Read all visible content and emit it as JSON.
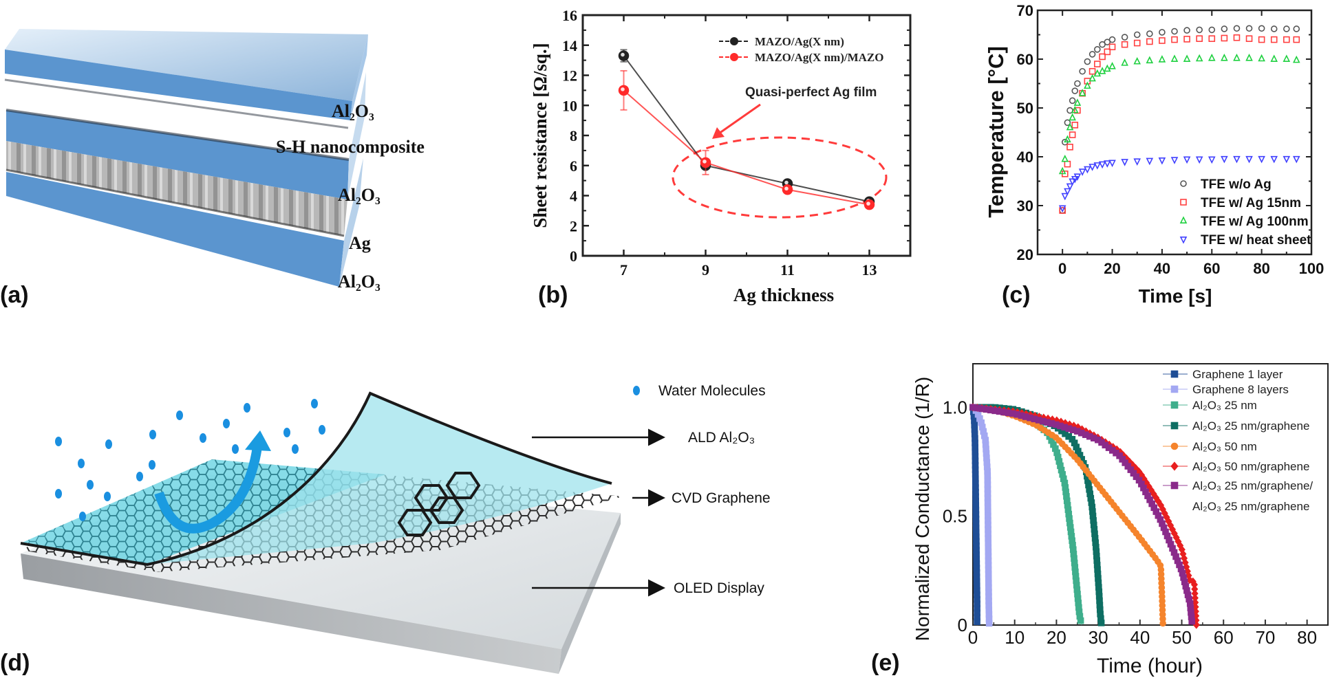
{
  "panel_labels": {
    "a": "(a)",
    "b": "(b)",
    "c": "(c)",
    "d": "(d)",
    "e": "(e)"
  },
  "panel_a": {
    "layer_labels": [
      "Al₂O₃",
      "S-H nanocomposite",
      "Al₂O₃",
      "Ag",
      "Al₂O₃"
    ],
    "colors": {
      "al2o3": "#5b95cf",
      "ag": "#9a9a9a"
    }
  },
  "panel_d": {
    "labels": {
      "water": "Water Molecules",
      "ald": "ALD Al₂O₃",
      "cvd": "CVD Graphene",
      "oled": "OLED Display"
    },
    "colors": {
      "water": "#1a8fe0",
      "barrier": "#5fd0e0",
      "graphene": "#1a1a1a",
      "display": "#c8cccf"
    }
  },
  "chart_data": [
    {
      "type": "line",
      "panel": "b",
      "xlabel": "Ag thickness",
      "ylabel": "Sheet resistance [Ω/sq.]",
      "xlim": [
        6,
        14
      ],
      "ylim": [
        0,
        16
      ],
      "xticks": [
        7,
        9,
        11,
        13
      ],
      "yticks": [
        0,
        2,
        4,
        6,
        8,
        10,
        12,
        14,
        16
      ],
      "x": [
        7,
        9,
        11,
        13
      ],
      "series": [
        {
          "name": "MAZO/Ag(X nm)",
          "color": "#222222",
          "values": [
            13.3,
            6.0,
            4.8,
            3.6
          ],
          "error": [
            0.4,
            0,
            0,
            0
          ]
        },
        {
          "name": "MAZO/Ag(X nm)/MAZO",
          "color": "#ff2a2a",
          "values": [
            11.0,
            6.2,
            4.4,
            3.4
          ],
          "error": [
            1.3,
            0.8,
            0,
            0
          ]
        }
      ],
      "annotation": "Quasi-perfect Ag film",
      "annotation_color": "#ff3b3b",
      "legend": "top-right",
      "grid": false
    },
    {
      "type": "scatter",
      "panel": "c",
      "xlabel": "Time [s]",
      "ylabel": "Temperature [°C]",
      "xlim": [
        -10,
        100
      ],
      "ylim": [
        20,
        70
      ],
      "xticks": [
        0,
        20,
        40,
        60,
        80,
        100
      ],
      "yticks": [
        20,
        30,
        40,
        50,
        60,
        70
      ],
      "x": [
        0,
        1,
        2,
        3,
        4,
        5,
        6,
        8,
        10,
        12,
        14,
        16,
        18,
        20,
        25,
        30,
        35,
        40,
        45,
        50,
        55,
        60,
        65,
        70,
        75,
        80,
        85,
        90,
        94
      ],
      "series": [
        {
          "name": "TFE w/o Ag",
          "marker": "circle",
          "color": "#555555",
          "values": [
            29,
            43,
            47,
            49.5,
            51.5,
            53.5,
            55,
            57.5,
            59.5,
            61,
            62,
            63,
            63.5,
            64,
            64.5,
            65,
            65.2,
            65.5,
            65.7,
            65.9,
            66,
            66,
            66.2,
            66.3,
            66.3,
            66.3,
            66.2,
            66.2,
            66.2
          ]
        },
        {
          "name": "TFE w/ Ag 15nm",
          "marker": "square",
          "color": "#ff4040",
          "values": [
            29,
            36.5,
            38.5,
            42,
            44.5,
            46.5,
            49.5,
            53,
            55.5,
            57.5,
            59,
            60.5,
            61.5,
            62.5,
            63,
            63.3,
            63.6,
            63.8,
            64,
            64.1,
            64.2,
            64.2,
            64.3,
            64.4,
            64.2,
            64,
            64,
            64,
            64
          ]
        },
        {
          "name": "TFE w/ Ag 100nm",
          "marker": "triangle-up",
          "color": "#1fd040",
          "values": [
            37,
            39.5,
            43.5,
            46,
            48,
            49.5,
            51,
            53,
            54.5,
            56,
            57,
            57.5,
            58,
            58.5,
            59.2,
            59.5,
            59.7,
            59.9,
            60,
            60,
            60.1,
            60.2,
            60.2,
            60.2,
            60.2,
            60.1,
            60,
            60,
            59.8
          ]
        },
        {
          "name": "TFE w/ heat sheet",
          "marker": "triangle-down",
          "color": "#4040ff",
          "values": [
            29.5,
            32,
            33,
            34,
            35,
            35.5,
            36,
            37,
            37.5,
            38,
            38.3,
            38.5,
            38.7,
            38.8,
            39,
            39.1,
            39.2,
            39.3,
            39.4,
            39.5,
            39.5,
            39.5,
            39.6,
            39.6,
            39.6,
            39.6,
            39.6,
            39.6,
            39.6
          ]
        }
      ],
      "legend": "bottom-right",
      "grid": false
    },
    {
      "type": "line",
      "panel": "e",
      "xlabel": "Time (hour)",
      "ylabel": "Normalized Conductance (1/R)",
      "xlim": [
        0,
        85
      ],
      "ylim": [
        0,
        1.2
      ],
      "xticks": [
        0,
        10,
        20,
        30,
        40,
        50,
        60,
        70,
        80
      ],
      "yticks": [
        0,
        0.5,
        1.0
      ],
      "ytick_labels": [
        "0",
        "0.5",
        "1.0"
      ],
      "series": [
        {
          "name_lines": [
            "Graphene 1 layer"
          ],
          "marker": "square",
          "color": "#1f4e96",
          "x": [
            0,
            0.3,
            0.5,
            0.6,
            0.7,
            0.8,
            0.9,
            1.0,
            1.0
          ],
          "y": [
            1,
            0.95,
            0.85,
            0.7,
            0.55,
            0.4,
            0.25,
            0.1,
            0
          ]
        },
        {
          "name_lines": [
            "Graphene 8 layers"
          ],
          "marker": "square",
          "color": "#a3a8f2",
          "x": [
            0,
            1,
            2,
            3,
            3.5,
            3.6,
            3.7,
            3.8,
            3.9
          ],
          "y": [
            1,
            0.98,
            0.93,
            0.85,
            0.7,
            0.5,
            0.3,
            0.1,
            0
          ]
        },
        {
          "name_lines": [
            "Al₂O₃ 25 nm"
          ],
          "marker": "square",
          "color": "#3fae8c",
          "x": [
            0,
            5,
            10,
            15,
            18,
            20,
            22,
            23,
            24,
            25,
            25.5,
            26
          ],
          "y": [
            1,
            0.99,
            0.97,
            0.93,
            0.88,
            0.8,
            0.65,
            0.5,
            0.35,
            0.15,
            0.05,
            0
          ]
        },
        {
          "name_lines": [
            "Al₂O₃ 25 nm/graphene"
          ],
          "marker": "square",
          "color": "#0e6e63",
          "x": [
            0,
            5,
            10,
            15,
            20,
            24,
            27,
            28.5,
            29.5,
            30.2,
            30.5,
            30.8
          ],
          "y": [
            1,
            1,
            0.99,
            0.96,
            0.91,
            0.85,
            0.72,
            0.55,
            0.35,
            0.15,
            0.05,
            0
          ]
        },
        {
          "name_lines": [
            "Al₂O₃ 50 nm"
          ],
          "marker": "circle",
          "color": "#f5842c",
          "x": [
            0,
            5,
            10,
            15,
            20,
            25,
            30,
            35,
            40,
            44,
            45,
            45.3,
            45.5
          ],
          "y": [
            1,
            0.99,
            0.96,
            0.92,
            0.86,
            0.76,
            0.64,
            0.52,
            0.4,
            0.3,
            0.27,
            0.12,
            0
          ]
        },
        {
          "name_lines": [
            "Al₂O₃ 50 nm/graphene"
          ],
          "marker": "diamond",
          "color": "#e81f1f",
          "x": [
            0,
            10,
            20,
            25,
            30,
            35,
            40,
            45,
            50,
            52,
            53,
            53.5
          ],
          "y": [
            1,
            0.98,
            0.94,
            0.91,
            0.86,
            0.8,
            0.7,
            0.55,
            0.35,
            0.2,
            0.2,
            0
          ]
        },
        {
          "name_lines": [
            "Al₂O₃ 25 nm/graphene/",
            "Al₂O₃ 25 nm/graphene"
          ],
          "marker": "square",
          "color": "#8a2a8a",
          "x": [
            0,
            10,
            20,
            25,
            30,
            35,
            40,
            45,
            50,
            52,
            52.5
          ],
          "y": [
            1,
            0.97,
            0.92,
            0.89,
            0.85,
            0.78,
            0.66,
            0.48,
            0.25,
            0.1,
            0
          ]
        }
      ],
      "legend": "top-right",
      "grid": false
    }
  ]
}
